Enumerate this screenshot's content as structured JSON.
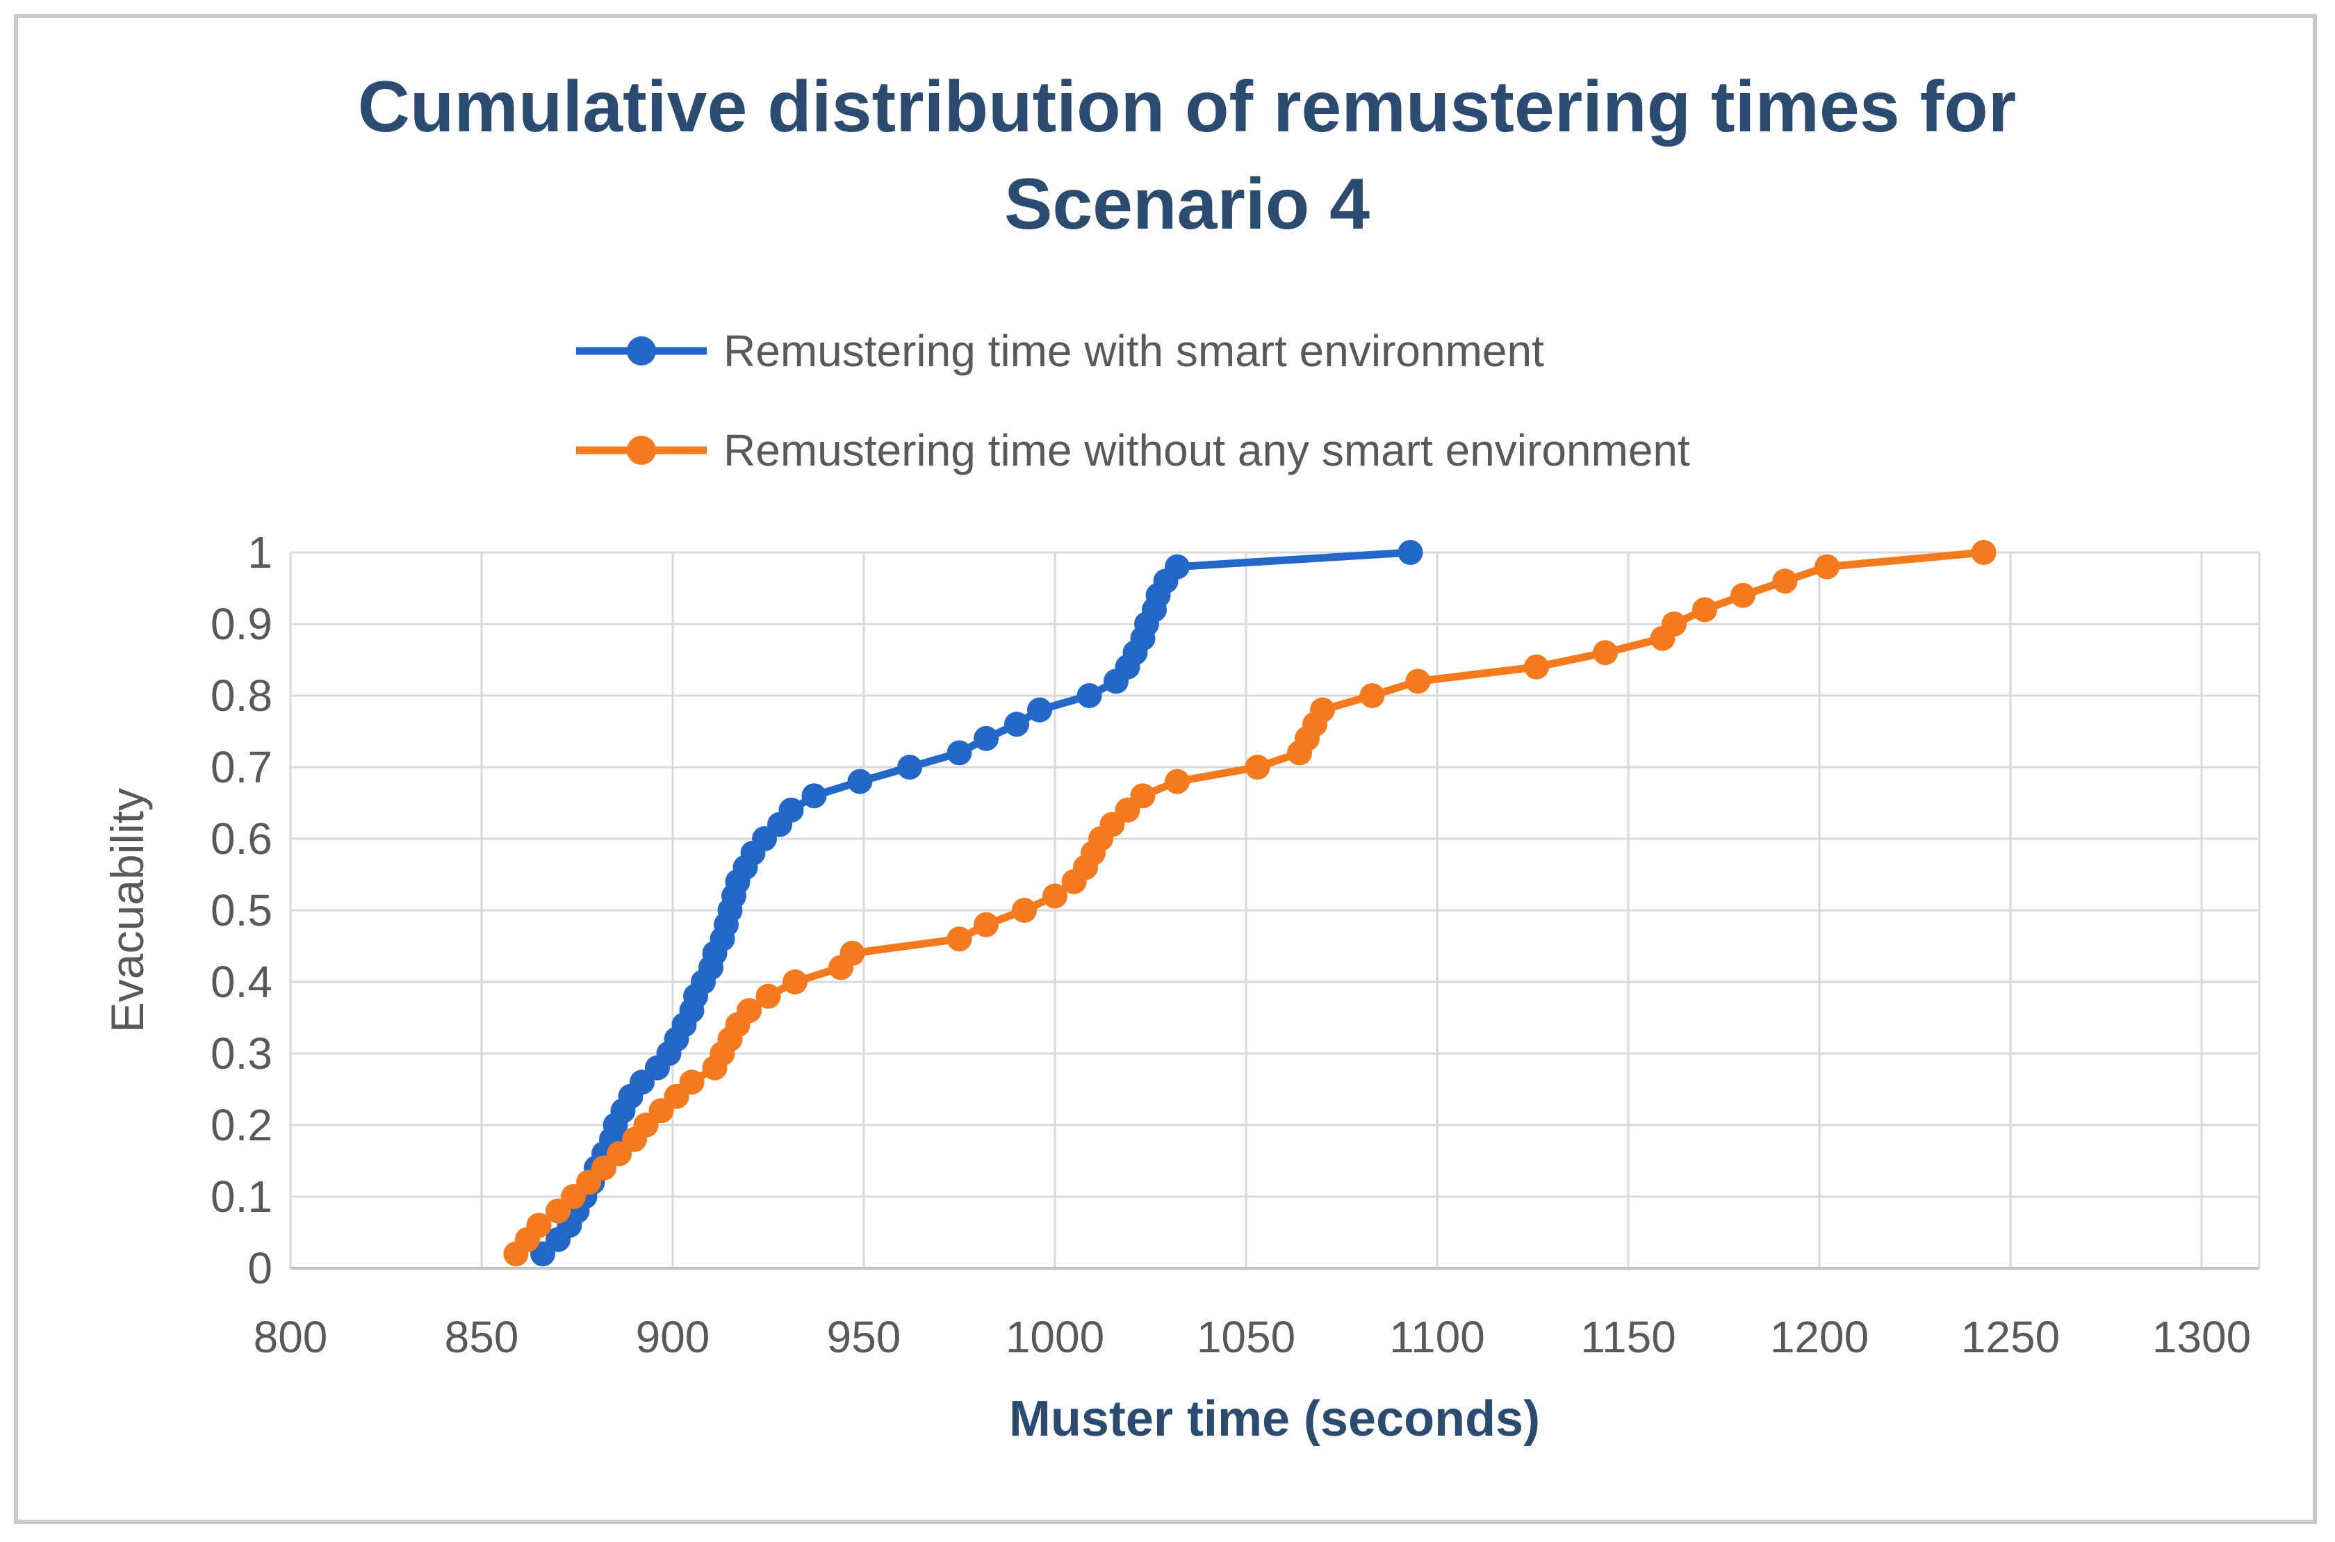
{
  "chart_data": {
    "type": "line",
    "title": "Cumulative distribution of remustering times for Scenario 4",
    "title_lines": [
      "Cumulative distribution of remustering times for",
      "Scenario 4"
    ],
    "xlabel": "Muster time (seconds)",
    "ylabel": "Evacuability",
    "xlim": [
      800,
      1300
    ],
    "ylim": [
      0,
      1
    ],
    "grid": true,
    "legend_position": "top-center",
    "x_ticks": [
      {
        "v": 800,
        "label": "800"
      },
      {
        "v": 850,
        "label": "850"
      },
      {
        "v": 900,
        "label": "900"
      },
      {
        "v": 950,
        "label": "950"
      },
      {
        "v": 1000,
        "label": "1000"
      },
      {
        "v": 1050,
        "label": "1050"
      },
      {
        "v": 1100,
        "label": "1100"
      },
      {
        "v": 1150,
        "label": "1150"
      },
      {
        "v": 1200,
        "label": "1200"
      },
      {
        "v": 1250,
        "label": "1250"
      },
      {
        "v": 1300,
        "label": "1300"
      }
    ],
    "y_ticks": [
      {
        "v": 0,
        "label": "0"
      },
      {
        "v": 0.1,
        "label": "0.1"
      },
      {
        "v": 0.2,
        "label": "0.2"
      },
      {
        "v": 0.3,
        "label": "0.3"
      },
      {
        "v": 0.4,
        "label": "0.4"
      },
      {
        "v": 0.5,
        "label": "0.5"
      },
      {
        "v": 0.6,
        "label": "0.6"
      },
      {
        "v": 0.7,
        "label": "0.7"
      },
      {
        "v": 0.8,
        "label": "0.8"
      },
      {
        "v": 0.9,
        "label": "0.9"
      },
      {
        "v": 1,
        "label": "1"
      }
    ],
    "series": [
      {
        "name": "Remustering time with smart environment",
        "color": "#2368C8",
        "points": [
          [
            866,
            0.02
          ],
          [
            870,
            0.04
          ],
          [
            873,
            0.06
          ],
          [
            875,
            0.08
          ],
          [
            877,
            0.1
          ],
          [
            879,
            0.12
          ],
          [
            880,
            0.14
          ],
          [
            882,
            0.16
          ],
          [
            884,
            0.18
          ],
          [
            885,
            0.2
          ],
          [
            887,
            0.22
          ],
          [
            889,
            0.24
          ],
          [
            892,
            0.26
          ],
          [
            896,
            0.28
          ],
          [
            899,
            0.3
          ],
          [
            901,
            0.32
          ],
          [
            903,
            0.34
          ],
          [
            905,
            0.36
          ],
          [
            906,
            0.38
          ],
          [
            908,
            0.4
          ],
          [
            910,
            0.42
          ],
          [
            911,
            0.44
          ],
          [
            913,
            0.46
          ],
          [
            914,
            0.48
          ],
          [
            915,
            0.5
          ],
          [
            916,
            0.52
          ],
          [
            917,
            0.54
          ],
          [
            919,
            0.56
          ],
          [
            921,
            0.58
          ],
          [
            924,
            0.6
          ],
          [
            928,
            0.62
          ],
          [
            931,
            0.64
          ],
          [
            937,
            0.66
          ],
          [
            949,
            0.68
          ],
          [
            962,
            0.7
          ],
          [
            975,
            0.72
          ],
          [
            982,
            0.74
          ],
          [
            990,
            0.76
          ],
          [
            996,
            0.78
          ],
          [
            1009,
            0.8
          ],
          [
            1016,
            0.82
          ],
          [
            1019,
            0.84
          ],
          [
            1021,
            0.86
          ],
          [
            1023,
            0.88
          ],
          [
            1024,
            0.9
          ],
          [
            1026,
            0.92
          ],
          [
            1027,
            0.94
          ],
          [
            1029,
            0.96
          ],
          [
            1032,
            0.98
          ],
          [
            1093,
            1
          ]
        ]
      },
      {
        "name": "Remustering time without any smart environment",
        "color": "#F57A1E",
        "points": [
          [
            859,
            0.02
          ],
          [
            862,
            0.04
          ],
          [
            865,
            0.06
          ],
          [
            870,
            0.08
          ],
          [
            874,
            0.1
          ],
          [
            878,
            0.12
          ],
          [
            882,
            0.14
          ],
          [
            886,
            0.16
          ],
          [
            890,
            0.18
          ],
          [
            893,
            0.2
          ],
          [
            897,
            0.22
          ],
          [
            901,
            0.24
          ],
          [
            905,
            0.26
          ],
          [
            911,
            0.28
          ],
          [
            913,
            0.3
          ],
          [
            915,
            0.32
          ],
          [
            917,
            0.34
          ],
          [
            920,
            0.36
          ],
          [
            925,
            0.38
          ],
          [
            932,
            0.4
          ],
          [
            944,
            0.42
          ],
          [
            947,
            0.44
          ],
          [
            975,
            0.46
          ],
          [
            982,
            0.48
          ],
          [
            992,
            0.5
          ],
          [
            1000,
            0.52
          ],
          [
            1005,
            0.54
          ],
          [
            1008,
            0.56
          ],
          [
            1010,
            0.58
          ],
          [
            1012,
            0.6
          ],
          [
            1015,
            0.62
          ],
          [
            1019,
            0.64
          ],
          [
            1023,
            0.66
          ],
          [
            1032,
            0.68
          ],
          [
            1053,
            0.7
          ],
          [
            1064,
            0.72
          ],
          [
            1066,
            0.74
          ],
          [
            1068,
            0.76
          ],
          [
            1070,
            0.78
          ],
          [
            1083,
            0.8
          ],
          [
            1095,
            0.82
          ],
          [
            1126,
            0.84
          ],
          [
            1144,
            0.86
          ],
          [
            1159,
            0.88
          ],
          [
            1162,
            0.9
          ],
          [
            1170,
            0.92
          ],
          [
            1180,
            0.94
          ],
          [
            1191,
            0.96
          ],
          [
            1202,
            0.98
          ],
          [
            1243,
            1
          ]
        ]
      }
    ]
  },
  "colors": {
    "title_text": "#2C4B71",
    "axis_text": "#595959",
    "gridline": "#D9D9D9",
    "axis_line": "#BFBFBF",
    "frame_border": "#C9C9C9",
    "background": "#FFFFFF"
  }
}
